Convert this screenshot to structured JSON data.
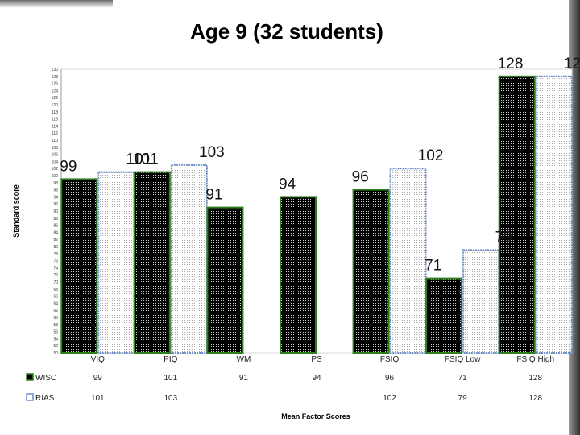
{
  "colors": {
    "wisc_fill": "#000000",
    "wisc_border": "#2e7d1e",
    "rias_fill": "#ffffff",
    "rias_border": "#6f8fc8",
    "dots": "#bdbdbd"
  },
  "chart_data": {
    "type": "bar",
    "title": "Age 9 (32 students)",
    "xlabel": "Mean Factor Scores",
    "ylabel": "Standard score",
    "categories": [
      "VIQ",
      "PIQ",
      "WM",
      "PS",
      "FSIQ",
      "FSIQ Low",
      "FSIQ High"
    ],
    "series": [
      {
        "name": "WISC",
        "values": [
          99,
          101,
          91,
          94,
          96,
          71,
          128
        ]
      },
      {
        "name": "RIAS",
        "values": [
          101,
          103,
          null,
          null,
          102,
          79,
          128
        ]
      }
    ],
    "table_rows": [
      {
        "label": "WISC",
        "cells": [
          "99",
          "101",
          "91",
          "94",
          "96",
          "71",
          "128"
        ]
      },
      {
        "label": "RIAS",
        "cells": [
          "101",
          "103",
          "",
          "",
          "102",
          "79",
          "128"
        ]
      }
    ],
    "ylim": [
      50,
      130
    ],
    "legend": "left, in data table",
    "grid": false
  }
}
